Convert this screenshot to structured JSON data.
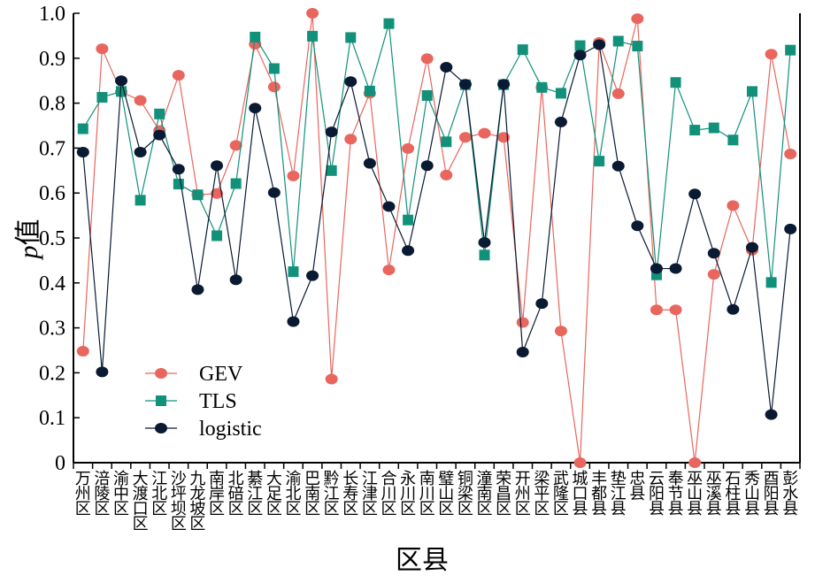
{
  "chart_data": {
    "type": "line",
    "title": "",
    "xlabel": "区县",
    "ylabel_italic": "p",
    "ylabel_suffix": "值",
    "ylim": [
      0,
      1.0
    ],
    "yticks": [
      "0",
      "0.1",
      "0.2",
      "0.3",
      "0.4",
      "0.5",
      "0.6",
      "0.7",
      "0.8",
      "0.9",
      "1.0"
    ],
    "legend_position": "lower-left",
    "categories": [
      "万州区",
      "涪陵区",
      "渝中区",
      "大渡口区",
      "江北区",
      "沙坪坝区",
      "九龙坡区",
      "南岸区",
      "北碚区",
      "綦江区",
      "大足区",
      "渝北区",
      "巴南区",
      "黔江区",
      "长寿区",
      "江津区",
      "合川区",
      "永川区",
      "南川区",
      "璧山区",
      "铜梁区",
      "潼南区",
      "荣昌区",
      "开州区",
      "梁平区",
      "武隆区",
      "城口县",
      "丰都县",
      "垫江县",
      "忠县",
      "云阳县",
      "奉节县",
      "巫山县",
      "巫溪县",
      "石柱县",
      "秀山县",
      "酉阳县",
      "彭水县"
    ],
    "series": [
      {
        "name": "GEV",
        "color": "#e8665e",
        "marker": "circle",
        "values": [
          0.248,
          0.921,
          0.825,
          0.806,
          0.739,
          0.862,
          0.596,
          0.599,
          0.706,
          0.931,
          0.836,
          0.638,
          1.0,
          0.186,
          0.72,
          0.822,
          0.429,
          0.699,
          0.899,
          0.64,
          0.724,
          0.733,
          0.724,
          0.312,
          0.835,
          0.293,
          0.0,
          0.935,
          0.821,
          0.988,
          0.34,
          0.34,
          0.0,
          0.419,
          0.572,
          0.473,
          0.909,
          0.687
        ]
      },
      {
        "name": "TLS",
        "color": "#11917a",
        "marker": "square",
        "values": [
          0.743,
          0.813,
          0.826,
          0.584,
          0.776,
          0.62,
          0.596,
          0.505,
          0.621,
          0.947,
          0.877,
          0.425,
          0.949,
          0.65,
          0.946,
          0.827,
          0.977,
          0.54,
          0.817,
          0.714,
          0.841,
          0.462,
          0.841,
          0.919,
          0.835,
          0.822,
          0.928,
          0.671,
          0.938,
          0.927,
          0.418,
          0.846,
          0.74,
          0.745,
          0.718,
          0.826,
          0.401,
          0.918
        ]
      },
      {
        "name": "logistic",
        "color": "#0a1a33",
        "marker": "circle",
        "values": [
          0.691,
          0.202,
          0.85,
          0.691,
          0.729,
          0.653,
          0.385,
          0.661,
          0.407,
          0.789,
          0.601,
          0.314,
          0.416,
          0.736,
          0.848,
          0.666,
          0.57,
          0.472,
          0.661,
          0.88,
          0.842,
          0.49,
          0.842,
          0.246,
          0.354,
          0.758,
          0.907,
          0.93,
          0.66,
          0.527,
          0.432,
          0.432,
          0.598,
          0.466,
          0.341,
          0.479,
          0.107,
          0.52
        ]
      }
    ]
  }
}
